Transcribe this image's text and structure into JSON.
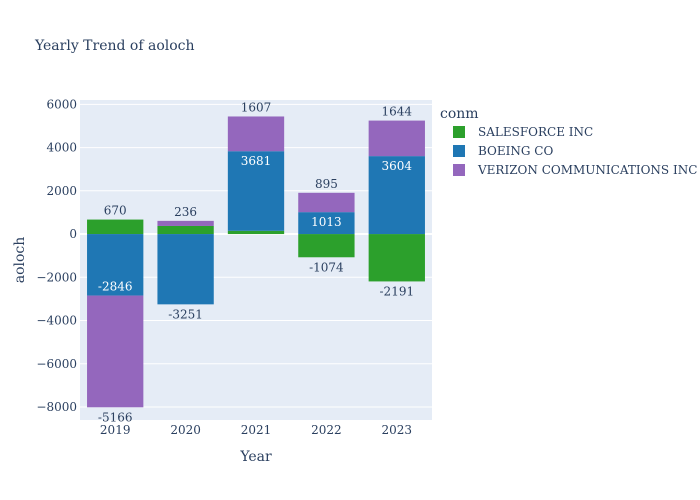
{
  "chart_data": {
    "type": "bar",
    "barmode": "relative",
    "title": "Yearly Trend of aoloch",
    "xlabel": "Year",
    "ylabel": "aoloch",
    "categories": [
      "2019",
      "2020",
      "2021",
      "2022",
      "2023"
    ],
    "ylim": [
      -8600,
      6200
    ],
    "yticks": [
      6000,
      4000,
      2000,
      0,
      -2000,
      -4000,
      -6000,
      -8000
    ],
    "ytick_labels": [
      "6000",
      "4000",
      "2000",
      "0",
      "−2000",
      "−4000",
      "−6000",
      "−8000"
    ],
    "grid": true,
    "legend": {
      "title": "conm",
      "position": "right"
    },
    "background_color": "#e5ecf6",
    "series": [
      {
        "name": "SALESFORCE INC",
        "color": "#2ca02c",
        "values": [
          670,
          374,
          150,
          -1074,
          -2191
        ],
        "labels": [
          "670",
          "",
          "",
          "-1074",
          "-2191"
        ]
      },
      {
        "name": "BOEING CO",
        "color": "#1f77b4",
        "values": [
          -2846,
          -3251,
          3681,
          1013,
          3604
        ],
        "labels": [
          "-2846",
          "-3251",
          "3681",
          "1013",
          "3604"
        ]
      },
      {
        "name": "VERIZON COMMUNICATIONS INC",
        "color": "#9467bd",
        "values": [
          -5166,
          236,
          1607,
          895,
          1644
        ],
        "labels": [
          "-5166",
          "236",
          "1607",
          "895",
          "1644"
        ]
      }
    ]
  }
}
